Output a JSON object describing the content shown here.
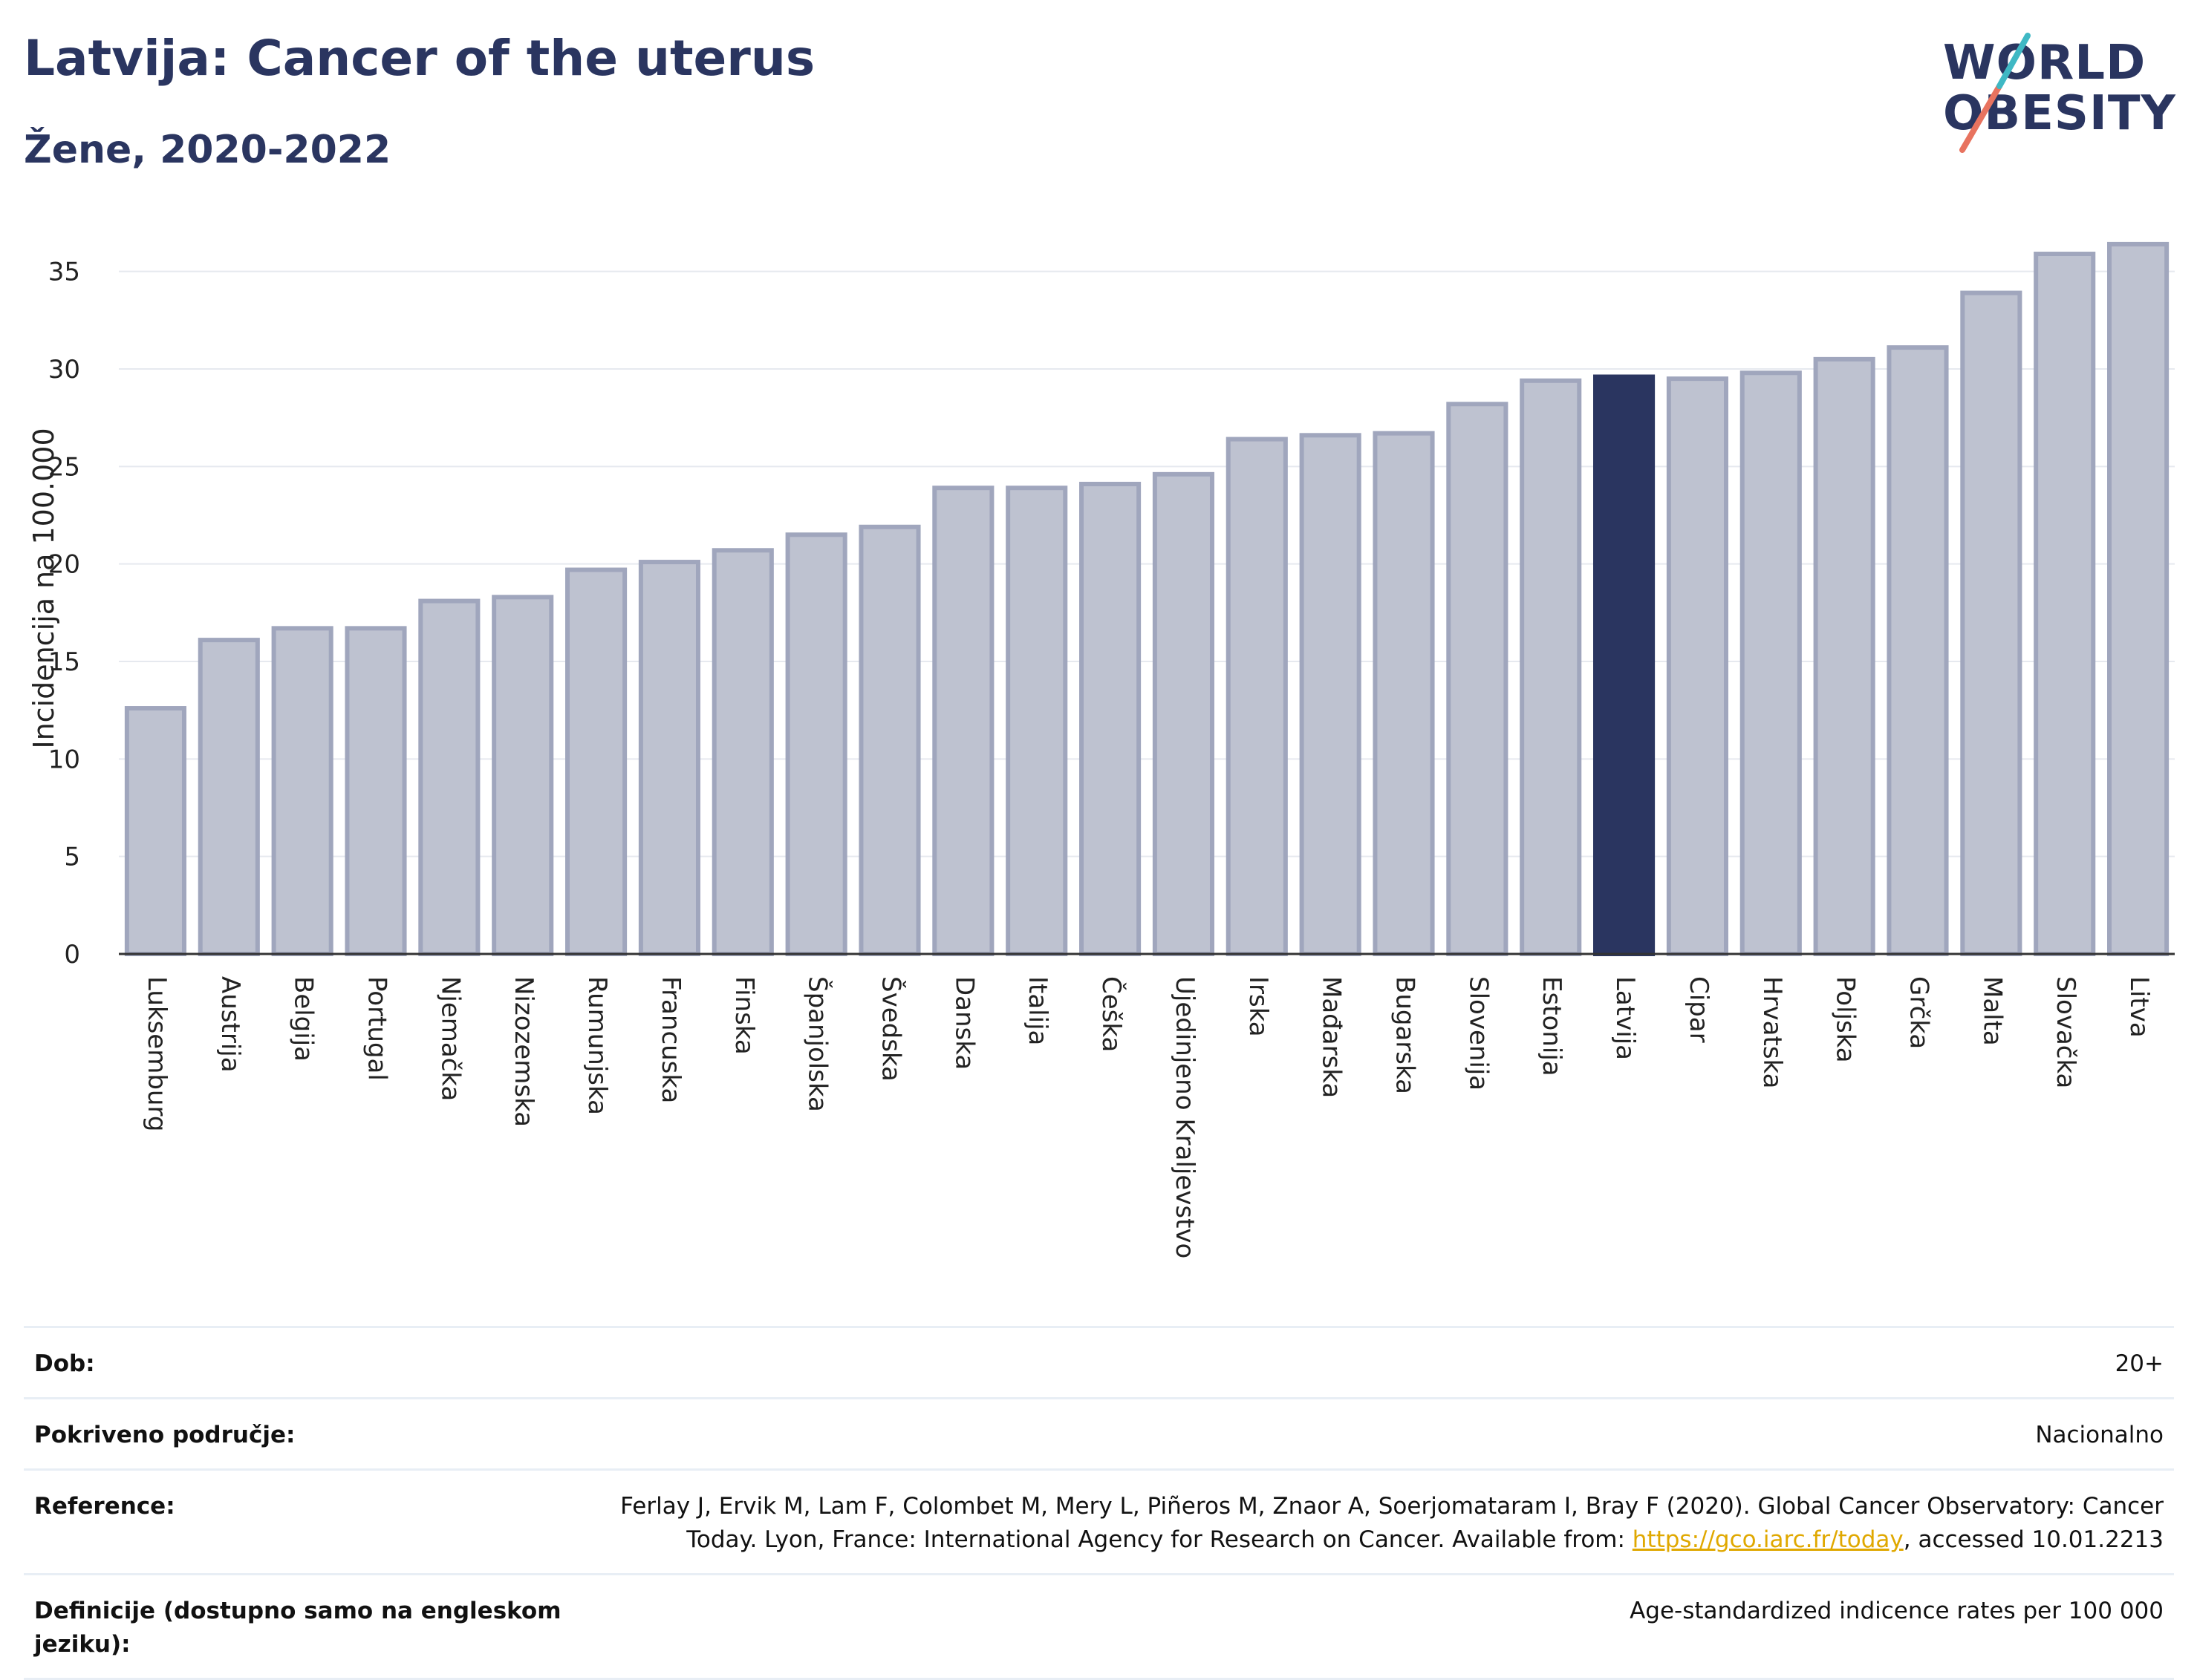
{
  "header": {
    "title": "Latvija: Cancer of the uterus",
    "subtitle": "Žene, 2020-2022"
  },
  "logo": {
    "line1": "WORLD",
    "line2": "OBESITY"
  },
  "colors": {
    "bar": "#bec2d0",
    "bar_border": "#a0a6bd",
    "highlight": "#2a3560",
    "grid": "#e6e9ef",
    "text": "#2a3560"
  },
  "chart_data": {
    "type": "bar",
    "ylabel": "Incidencija na 100.000",
    "xlabel": "",
    "ylim": [
      0,
      37.5
    ],
    "yticks": [
      0,
      5,
      10,
      15,
      20,
      25,
      30,
      35
    ],
    "grid": true,
    "highlight": "Latvija",
    "categories": [
      "Luksemburg",
      "Austrija",
      "Belgija",
      "Portugal",
      "Njemačka",
      "Nizozemska",
      "Rumunjska",
      "Francuska",
      "Finska",
      "Španjolska",
      "Švedska",
      "Danska",
      "Italija",
      "Češka",
      "Ujedinjeno Kraljevstvo",
      "Irska",
      "Mađarska",
      "Bugarska",
      "Slovenija",
      "Estonija",
      "Latvija",
      "Cipar",
      "Hrvatska",
      "Poljska",
      "Grčka",
      "Malta",
      "Slovačka",
      "Litva"
    ],
    "values": [
      12.6,
      16.1,
      16.7,
      16.7,
      18.1,
      18.3,
      19.7,
      20.1,
      20.7,
      21.5,
      21.9,
      23.9,
      23.9,
      24.1,
      24.6,
      26.4,
      26.6,
      26.7,
      28.2,
      29.4,
      29.6,
      29.5,
      29.8,
      30.5,
      31.1,
      33.9,
      35.9,
      36.4
    ]
  },
  "info": {
    "rows": [
      {
        "label": "Dob:",
        "value": "20+"
      },
      {
        "label": "Pokriveno područje:",
        "value": "Nacionalno"
      },
      {
        "label": "Reference:",
        "value_pre": "Ferlay J, Ervik M, Lam F, Colombet M, Mery L, Piñeros M, Znaor A, Soerjomataram I, Bray F (2020). Global Cancer Observatory: Cancer Today. Lyon, France: International Agency for Research on Cancer. Available from: ",
        "link": "https://gco.iarc.fr/today",
        "value_post": ", accessed 10.01.2213"
      },
      {
        "label": "Definicije (dostupno samo na engleskom jeziku):",
        "value": "Age-standardized indicence rates per 100 000"
      }
    ]
  }
}
